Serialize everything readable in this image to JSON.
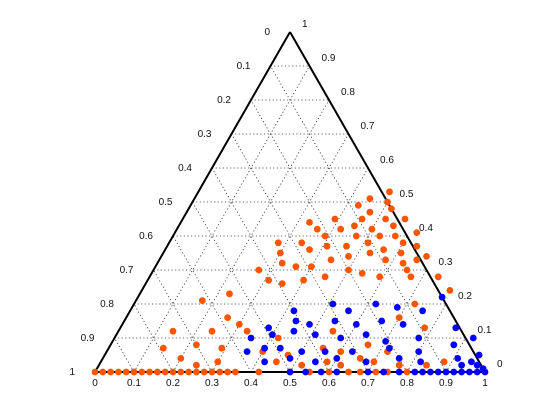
{
  "chart_data": {
    "type": "scatter",
    "subtype": "ternary",
    "title": "",
    "grid": true,
    "axes": {
      "bottom": {
        "range": [
          0,
          1
        ],
        "ticks": [
          "0",
          "0.1",
          "0.2",
          "0.3",
          "0.4",
          "0.5",
          "0.6",
          "0.7",
          "0.8",
          "0.9",
          "1"
        ]
      },
      "left": {
        "range": [
          0,
          1
        ],
        "ticks": [
          "0",
          "0.1",
          "0.2",
          "0.3",
          "0.4",
          "0.5",
          "0.6",
          "0.7",
          "0.8",
          "0.9",
          "1"
        ]
      },
      "right": {
        "range": [
          0,
          1
        ],
        "ticks": [
          "0",
          "0.1",
          "0.2",
          "0.3",
          "0.4",
          "0.5",
          "0.6",
          "0.7",
          "0.8",
          "0.9",
          "1"
        ]
      }
    },
    "series": [
      {
        "color": "#ff5500",
        "points": [
          [
            0,
            0
          ],
          [
            0.02,
            0
          ],
          [
            0.04,
            0
          ],
          [
            0.06,
            0
          ],
          [
            0.08,
            0
          ],
          [
            0.1,
            0
          ],
          [
            0.12,
            0
          ],
          [
            0.14,
            0
          ],
          [
            0.16,
            0
          ],
          [
            0.18,
            0
          ],
          [
            0.2,
            0
          ],
          [
            0.22,
            0
          ],
          [
            0.24,
            0
          ],
          [
            0.26,
            0
          ],
          [
            0.28,
            0
          ],
          [
            0.3,
            0
          ],
          [
            0.32,
            0
          ],
          [
            0.34,
            0
          ],
          [
            0.36,
            0
          ],
          [
            0.42,
            0
          ],
          [
            0.5,
            0
          ],
          [
            0.55,
            0
          ],
          [
            0.6,
            0
          ],
          [
            0.65,
            0
          ],
          [
            0.68,
            0
          ],
          [
            0.72,
            0
          ],
          [
            0.75,
            0
          ],
          [
            0.8,
            0
          ],
          [
            0.2,
            0.04
          ],
          [
            0.25,
            0.02
          ],
          [
            0.3,
            0.03
          ],
          [
            0.45,
            0.03
          ],
          [
            0.52,
            0.02
          ],
          [
            0.58,
            0.03
          ],
          [
            0.62,
            0.02
          ],
          [
            0.66,
            0.04
          ],
          [
            0.7,
            0.03
          ],
          [
            0.77,
            0.02
          ],
          [
            0.84,
            0.02
          ],
          [
            0.88,
            0.03
          ],
          [
            0.14,
            0.07
          ],
          [
            0.22,
            0.08
          ],
          [
            0.29,
            0.07
          ],
          [
            0.4,
            0.06
          ],
          [
            0.47,
            0.05
          ],
          [
            0.55,
            0.07
          ],
          [
            0.6,
            0.06
          ],
          [
            0.66,
            0.08
          ],
          [
            0.72,
            0.06
          ],
          [
            0.14,
            0.12
          ],
          [
            0.24,
            0.12
          ],
          [
            0.3,
            0.14
          ],
          [
            0.17,
            0.21
          ],
          [
            0.23,
            0.23
          ],
          [
            0.26,
            0.16
          ],
          [
            0.33,
            0.12
          ],
          [
            0.42,
            0.1
          ],
          [
            0.55,
            0.12
          ],
          [
            0.7,
            0.16
          ],
          [
            0.72,
            0.2
          ],
          [
            0.79,
            0.24
          ],
          [
            0.74,
            0.28
          ],
          [
            0.67,
            0.28
          ],
          [
            0.78,
            0.13
          ],
          [
            0.34,
            0.38
          ],
          [
            0.36,
            0.42
          ],
          [
            0.39,
            0.4
          ],
          [
            0.42,
            0.42
          ],
          [
            0.45,
            0.43
          ],
          [
            0.47,
            0.4
          ],
          [
            0.5,
            0.42
          ],
          [
            0.52,
            0.45
          ],
          [
            0.55,
            0.43
          ],
          [
            0.57,
            0.4
          ],
          [
            0.6,
            0.38
          ],
          [
            0.62,
            0.41
          ],
          [
            0.64,
            0.37
          ],
          [
            0.66,
            0.33
          ],
          [
            0.68,
            0.34
          ],
          [
            0.63,
            0.32
          ],
          [
            0.58,
            0.33
          ],
          [
            0.53,
            0.35
          ],
          [
            0.48,
            0.34
          ],
          [
            0.44,
            0.33
          ],
          [
            0.4,
            0.31
          ],
          [
            0.36,
            0.31
          ],
          [
            0.32,
            0.32
          ],
          [
            0.3,
            0.35
          ],
          [
            0.28,
            0.38
          ],
          [
            0.37,
            0.36
          ],
          [
            0.41,
            0.37
          ],
          [
            0.46,
            0.37
          ],
          [
            0.51,
            0.38
          ],
          [
            0.56,
            0.36
          ],
          [
            0.61,
            0.35
          ],
          [
            0.65,
            0.3
          ],
          [
            0.59,
            0.28
          ],
          [
            0.54,
            0.29
          ],
          [
            0.5,
            0.3
          ],
          [
            0.45,
            0.28
          ],
          [
            0.4,
            0.27
          ],
          [
            0.35,
            0.26
          ],
          [
            0.31,
            0.27
          ],
          [
            0.27,
            0.3
          ],
          [
            0.43,
            0.49
          ],
          [
            0.47,
            0.47
          ],
          [
            0.5,
            0.5
          ],
          [
            0.52,
            0.48
          ],
          [
            0.45,
            0.51
          ],
          [
            0.49,
            0.53
          ],
          [
            0.46,
            0.45
          ],
          [
            0.53,
            0.4
          ],
          [
            0.57,
            0.45
          ],
          [
            0.39,
            0.45
          ],
          [
            0.33,
            0.44
          ]
        ]
      },
      {
        "color": "#0000ff",
        "points": [
          [
            0.5,
            0
          ],
          [
            0.54,
            0
          ],
          [
            0.58,
            0
          ],
          [
            0.62,
            0
          ],
          [
            0.7,
            0
          ],
          [
            0.74,
            0
          ],
          [
            0.78,
            0
          ],
          [
            0.82,
            0
          ],
          [
            0.84,
            0
          ],
          [
            0.86,
            0
          ],
          [
            0.88,
            0
          ],
          [
            0.9,
            0
          ],
          [
            0.92,
            0
          ],
          [
            0.94,
            0
          ],
          [
            0.96,
            0
          ],
          [
            0.98,
            0
          ],
          [
            1.0,
            0
          ],
          [
            0.99,
            0.01
          ],
          [
            0.97,
            0.02
          ],
          [
            0.95,
            0.03
          ],
          [
            0.93,
            0.02
          ],
          [
            0.42,
            0.03
          ],
          [
            0.48,
            0.04
          ],
          [
            0.55,
            0.03
          ],
          [
            0.6,
            0.04
          ],
          [
            0.68,
            0.03
          ],
          [
            0.76,
            0.04
          ],
          [
            0.82,
            0.03
          ],
          [
            0.91,
            0.04
          ],
          [
            0.96,
            0.05
          ],
          [
            0.36,
            0.06
          ],
          [
            0.4,
            0.07
          ],
          [
            0.44,
            0.07
          ],
          [
            0.5,
            0.06
          ],
          [
            0.56,
            0.06
          ],
          [
            0.63,
            0.06
          ],
          [
            0.72,
            0.07
          ],
          [
            0.8,
            0.06
          ],
          [
            0.88,
            0.08
          ],
          [
            0.35,
            0.1
          ],
          [
            0.4,
            0.11
          ],
          [
            0.45,
            0.12
          ],
          [
            0.51,
            0.11
          ],
          [
            0.58,
            0.1
          ],
          [
            0.64,
            0.11
          ],
          [
            0.7,
            0.09
          ],
          [
            0.78,
            0.1
          ],
          [
            0.92,
            0.1
          ],
          [
            0.38,
            0.13
          ],
          [
            0.44,
            0.15
          ],
          [
            0.48,
            0.14
          ],
          [
            0.54,
            0.15
          ],
          [
            0.6,
            0.14
          ],
          [
            0.66,
            0.15
          ],
          [
            0.72,
            0.14
          ],
          [
            0.86,
            0.13
          ],
          [
            0.42,
            0.18
          ],
          [
            0.51,
            0.2
          ],
          [
            0.56,
            0.18
          ],
          [
            0.62,
            0.2
          ],
          [
            0.68,
            0.19
          ],
          [
            0.75,
            0.18
          ],
          [
            0.78,
            0.22
          ]
        ]
      }
    ]
  }
}
